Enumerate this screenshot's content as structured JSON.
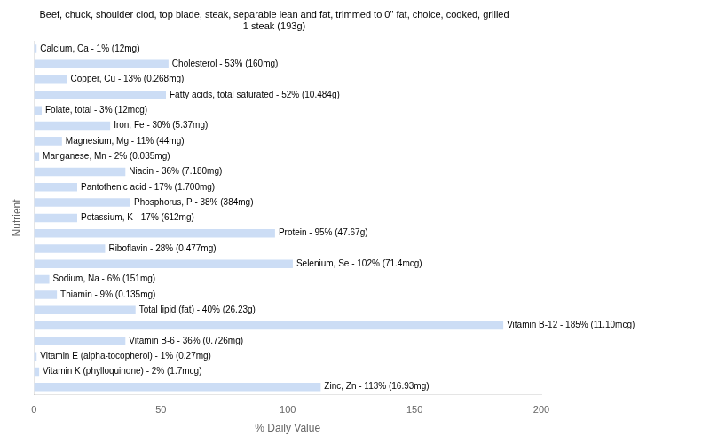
{
  "chart_data": {
    "type": "bar",
    "orientation": "horizontal",
    "title": "Beef, chuck, shoulder clod, top blade, steak, separable lean and fat, trimmed to 0\" fat, choice, cooked, grilled\n1 steak (193g)",
    "xlabel": "% Daily Value",
    "ylabel": "Nutrient",
    "categories": [
      "Calcium, Ca - 1% (12mg)",
      "Cholesterol - 53% (160mg)",
      "Copper, Cu - 13% (0.268mg)",
      "Fatty acids, total saturated - 52% (10.484g)",
      "Folate, total - 3% (12mcg)",
      "Iron, Fe - 30% (5.37mg)",
      "Magnesium, Mg - 11% (44mg)",
      "Manganese, Mn - 2% (0.035mg)",
      "Niacin - 36% (7.180mg)",
      "Pantothenic acid - 17% (1.700mg)",
      "Phosphorus, P - 38% (384mg)",
      "Potassium, K - 17% (612mg)",
      "Protein - 95% (47.67g)",
      "Riboflavin - 28% (0.477mg)",
      "Selenium, Se - 102% (71.4mcg)",
      "Sodium, Na - 6% (151mg)",
      "Thiamin - 9% (0.135mg)",
      "Total lipid (fat) - 40% (26.23g)",
      "Vitamin B-12 - 185% (11.10mcg)",
      "Vitamin B-6 - 36% (0.726mg)",
      "Vitamin E (alpha-tocopherol) - 1% (0.27mg)",
      "Vitamin K (phylloquinone) - 2% (1.7mcg)",
      "Zinc, Zn - 113% (16.93mg)"
    ],
    "values": [
      1,
      53,
      13,
      52,
      3,
      30,
      11,
      2,
      36,
      17,
      38,
      17,
      95,
      28,
      102,
      6,
      9,
      40,
      185,
      36,
      1,
      2,
      113
    ],
    "color": "#ccddf5",
    "xlim": [
      0,
      200
    ],
    "xticks": [
      0,
      50,
      100,
      150,
      200
    ],
    "grid": false,
    "tick_labels": "x"
  }
}
